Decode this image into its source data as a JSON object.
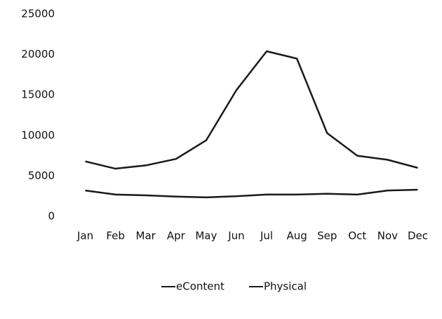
{
  "chart_data": {
    "type": "line",
    "categories": [
      "Jan",
      "Feb",
      "Mar",
      "Apr",
      "May",
      "Jun",
      "Jul",
      "Aug",
      "Sep",
      "Oct",
      "Nov",
      "Dec"
    ],
    "series": [
      {
        "name": "eContent",
        "color": "#1a1a1a",
        "values": [
          3200,
          2700,
          2600,
          2450,
          2350,
          2500,
          2700,
          2700,
          2800,
          2700,
          3200,
          3300
        ]
      },
      {
        "name": "Physical",
        "color": "#1a1a1a",
        "values": [
          6800,
          5900,
          6300,
          7100,
          9400,
          15600,
          20400,
          19500,
          10300,
          7500,
          7000,
          6000
        ]
      }
    ],
    "ylim": [
      0,
      25000
    ],
    "yticks": [
      0,
      5000,
      10000,
      15000,
      20000,
      25000
    ],
    "grid": false,
    "legend": "bottom"
  }
}
